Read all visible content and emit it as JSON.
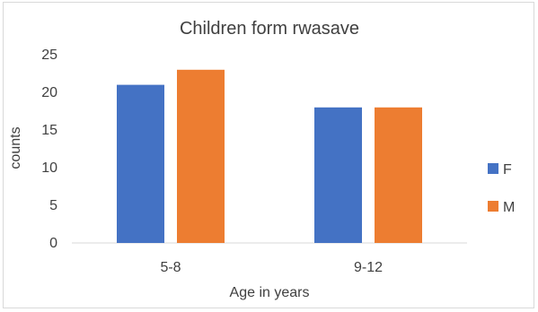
{
  "chart_data": {
    "type": "bar",
    "title": "Children form rwasave",
    "xlabel": "Age in years",
    "ylabel": "counts",
    "categories": [
      "5-8",
      "9-12"
    ],
    "series": [
      {
        "name": "F",
        "values": [
          21,
          18
        ],
        "color": "#4472C4"
      },
      {
        "name": "M",
        "values": [
          23,
          18
        ],
        "color": "#ED7D31"
      }
    ],
    "ylim": [
      0,
      25
    ],
    "yticks": [
      0,
      5,
      10,
      15,
      20,
      25
    ],
    "grid": false,
    "legend_position": "right"
  }
}
